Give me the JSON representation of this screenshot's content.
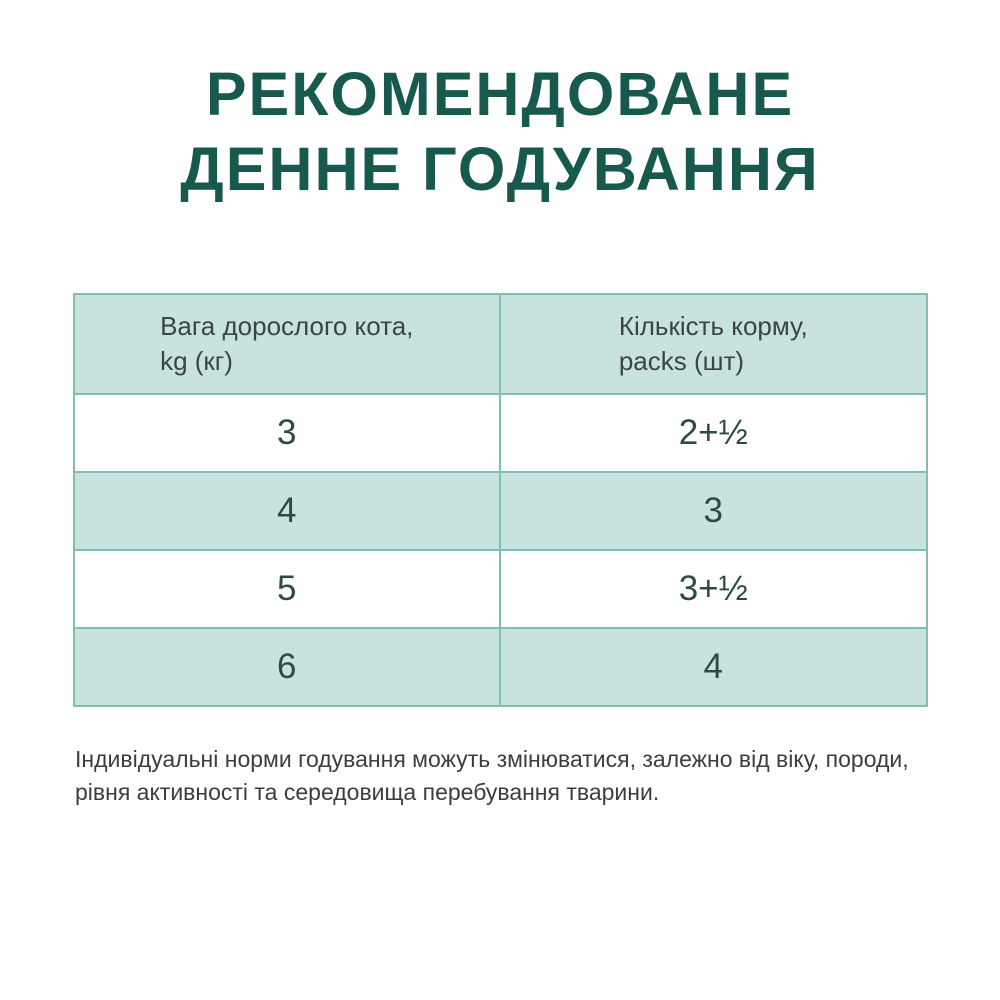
{
  "title": {
    "line1": "РЕКОМЕНДОВАНЕ",
    "line2": "ДЕННЕ ГОДУВАННЯ"
  },
  "table": {
    "columns": [
      {
        "line1": "Вага дорослого кота,",
        "line2": "kg (кг)"
      },
      {
        "line1": "Кількість корму,",
        "line2": "packs (шт)"
      }
    ],
    "rows": [
      {
        "weight": "3",
        "packs": "2+½"
      },
      {
        "weight": "4",
        "packs": "3"
      },
      {
        "weight": "5",
        "packs": "3+½"
      },
      {
        "weight": "6",
        "packs": "4"
      }
    ]
  },
  "footnote": "Індивідуальні норми годування можуть змінюватися, залежно від віку, породи, рівня активності та середовища перебування тварини.",
  "colors": {
    "title": "#17594d",
    "cell_teal": "#c8e3de",
    "border": "#84bcb2",
    "number_text": "#2d4b43",
    "header_text": "#3b4543",
    "footnote_text": "#3a3f3e"
  }
}
